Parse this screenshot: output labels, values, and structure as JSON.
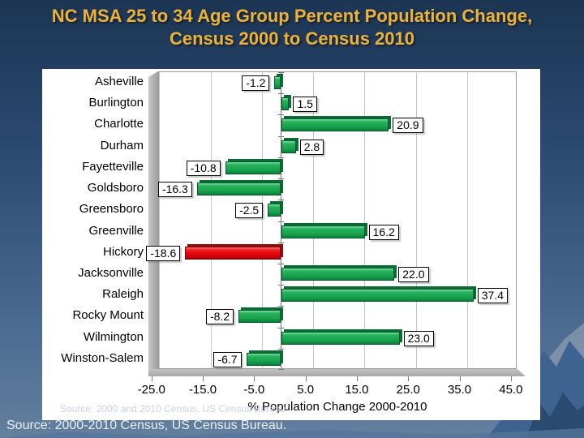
{
  "slide": {
    "title_line1": "NC MSA 25 to 34 Age Group Percent Population Change,",
    "title_line2": "Census 2000 to Census 2010",
    "title_color": "#ECB33C",
    "watermark": "Source: 2000 and 2010 Census, US Census Bureau",
    "source_footer": "Source: 2000-2010 Census, US Census Bureau."
  },
  "chart_data": {
    "type": "bar",
    "orientation": "horizontal",
    "title": "NC MSA 25 to 34 Age Group Percent Population Change, Census 2000 to Census 2010",
    "xlabel": "% Population Change 2000-2010",
    "categories": [
      "Asheville",
      "Burlington",
      "Charlotte",
      "Durham",
      "Fayetteville",
      "Goldsboro",
      "Greensboro",
      "Greenville",
      "Hickory",
      "Jacksonville",
      "Raleigh",
      "Rocky Mount",
      "Wilmington",
      "Winston-Salem"
    ],
    "values": [
      -1.2,
      1.5,
      20.9,
      2.8,
      -10.8,
      -16.3,
      -2.5,
      16.2,
      -18.6,
      22.0,
      37.4,
      -8.2,
      23.0,
      -6.7
    ],
    "data_labels": [
      "-1.2",
      "1.5",
      "20.9",
      "2.8",
      "-10.8",
      "-16.3",
      "-2.5",
      "16.2",
      "-18.6",
      "22.0",
      "37.4",
      "-8.2",
      "23.0",
      "-6.7"
    ],
    "highlight_category": "Hickory",
    "bar_color_default": "#16A04C",
    "bar_color_highlight": "#DD0008",
    "x_ticks": [
      -25,
      -15,
      -5,
      5,
      15,
      25,
      35,
      45
    ],
    "x_tick_labels": [
      "-25.0",
      "-15.0",
      "-5.0",
      "5.0",
      "15.0",
      "25.0",
      "35.0",
      "45.0"
    ],
    "xlim": [
      -25,
      46
    ],
    "grid": true,
    "legend": "none"
  }
}
